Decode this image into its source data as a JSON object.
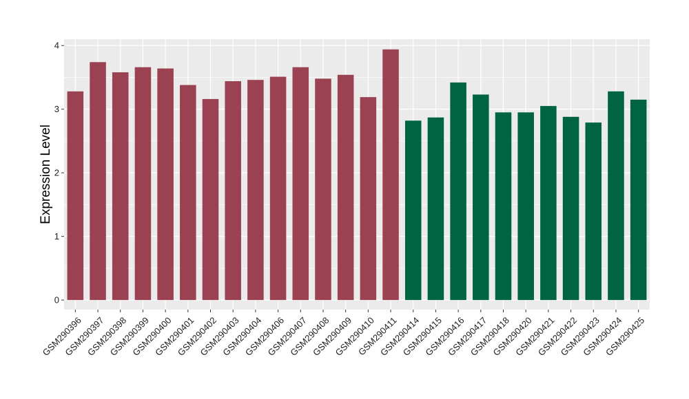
{
  "chart_data": {
    "type": "bar",
    "ylabel": "Expression Level",
    "xlabel": "",
    "ylim": [
      -0.15,
      4.1
    ],
    "yticks": [
      0,
      1,
      2,
      3,
      4
    ],
    "grid": true,
    "legend": "none",
    "panel_background": "#ebebeb",
    "grid_color": "#ffffff",
    "colors": {
      "group_a": "#9b4252",
      "group_b": "#006443"
    },
    "categories": [
      "GSM290396",
      "GSM290397",
      "GSM290398",
      "GSM290399",
      "GSM290400",
      "GSM290401",
      "GSM290402",
      "GSM290403",
      "GSM290404",
      "GSM290406",
      "GSM290407",
      "GSM290408",
      "GSM290409",
      "GSM290410",
      "GSM290411",
      "GSM290414",
      "GSM290415",
      "GSM290416",
      "GSM290417",
      "GSM290418",
      "GSM290420",
      "GSM290421",
      "GSM290422",
      "GSM290423",
      "GSM290424",
      "GSM290425"
    ],
    "values": [
      3.28,
      3.74,
      3.58,
      3.66,
      3.64,
      3.38,
      3.16,
      3.44,
      3.46,
      3.51,
      3.66,
      3.48,
      3.54,
      3.19,
      3.94,
      2.82,
      2.87,
      3.42,
      3.23,
      2.95,
      2.95,
      3.05,
      2.88,
      2.79,
      3.28,
      3.15
    ],
    "groups": [
      "group_a",
      "group_a",
      "group_a",
      "group_a",
      "group_a",
      "group_a",
      "group_a",
      "group_a",
      "group_a",
      "group_a",
      "group_a",
      "group_a",
      "group_a",
      "group_a",
      "group_a",
      "group_b",
      "group_b",
      "group_b",
      "group_b",
      "group_b",
      "group_b",
      "group_b",
      "group_b",
      "group_b",
      "group_b",
      "group_b"
    ]
  }
}
